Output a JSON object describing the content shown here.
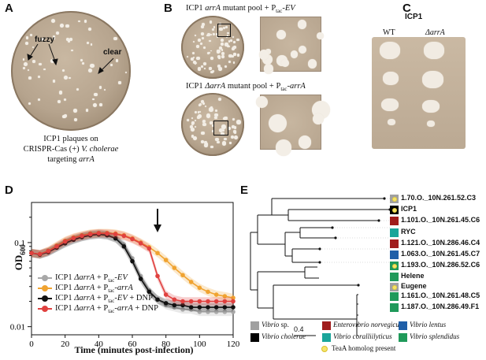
{
  "panels": {
    "A": {
      "letter": "A",
      "label_fuzzy": "fuzzy",
      "label_clear": "clear",
      "caption_line1": "ICP1 plaques on",
      "caption_line2_prefix": "CRISPR-Cas (+) ",
      "caption_line2_italic": "V. cholerae",
      "caption_line3_prefix": "targeting ",
      "caption_line3_italic": "arrA"
    },
    "B": {
      "letter": "B",
      "title1_prefix": "ICP1 ",
      "title1_italic": "arrA",
      "title1_mid": " mutant pool + P",
      "title1_sub": "tac",
      "title1_suffix": "-",
      "title1_suffix_italic": "EV",
      "title2_prefix": "ICP1 ",
      "title2_italic": "ΔarrA",
      "title2_mid": " mutant pool + P",
      "title2_sub": "tac",
      "title2_suffix": "-",
      "title2_suffix_italic": "arrA"
    },
    "C": {
      "letter": "C",
      "title": "ICP1",
      "col_wt": "WT",
      "col_delta": "ΔarrA"
    },
    "D": {
      "letter": "D",
      "ylabel": "OD",
      "ylabel_sub": "600",
      "xlabel": "Time (minutes post-infection)",
      "yticks": [
        "0.1",
        "0.01"
      ],
      "xticks": [
        "0",
        "20",
        "40",
        "60",
        "80",
        "100",
        "120"
      ],
      "legend": [
        {
          "prefix": "ICP1 ",
          "italic": "ΔarrA",
          "mid": " + P",
          "sub": "tac",
          "tail": "-",
          "tail_italic": "EV",
          "after": "",
          "color": "#a8a8a8"
        },
        {
          "prefix": "ICP1 ",
          "italic": "ΔarrA",
          "mid": " + P",
          "sub": "tac",
          "tail": "-",
          "tail_italic": "arrA",
          "after": "",
          "color": "#f0a330"
        },
        {
          "prefix": "ICP1 ",
          "italic": "ΔarrA",
          "mid": " + P",
          "sub": "tac",
          "tail": "-",
          "tail_italic": "EV",
          "after": " + DNP",
          "color": "#111111"
        },
        {
          "prefix": "ICP1 ",
          "italic": "ΔarrA",
          "mid": " + P",
          "sub": "tac",
          "tail": "-",
          "tail_italic": "arrA",
          "after": " + DNP",
          "color": "#e0413f"
        }
      ]
    },
    "E": {
      "letter": "E",
      "scale_label": "0.4",
      "leaves": [
        {
          "label": "1.70.O._10N.261.52.C3",
          "color": "#a0a0a0",
          "teaA": true
        },
        {
          "label": "ICP1",
          "color": "#000000",
          "teaA": true
        },
        {
          "label": "1.101.O._10N.261.45.C6",
          "color": "#a01c1c",
          "teaA": false
        },
        {
          "label": "RYC",
          "color": "#1aa59a",
          "teaA": false
        },
        {
          "label": "1.121.O._10N.286.46.C4",
          "color": "#a01c1c",
          "teaA": false
        },
        {
          "label": "1.063.O._10N.261.45.C7",
          "color": "#1f5fa8",
          "teaA": false
        },
        {
          "label": "1.193.O._10N.286.52.C6",
          "color": "#1f9a5a",
          "teaA": true
        },
        {
          "label": "Helene",
          "color": "#1f9a5a",
          "teaA": false
        },
        {
          "label": "Eugene",
          "color": "#a0a0a0",
          "teaA": true
        },
        {
          "label": "1.161.O._10N.261.48.C5",
          "color": "#1f9a5a",
          "teaA": false
        },
        {
          "label": "1.187.O._10N.286.49.F1",
          "color": "#1f9a5a",
          "teaA": false
        }
      ],
      "legend": [
        {
          "label": "Vibrio",
          "suffix": " sp.",
          "color": "#a0a0a0"
        },
        {
          "label": "Enterovibrio norvegicus",
          "suffix": "",
          "color": "#a01c1c"
        },
        {
          "label": "Vibrio lentus",
          "suffix": "",
          "color": "#1f5fa8"
        },
        {
          "label": "Vibrio cholerae",
          "suffix": "",
          "color": "#000000"
        },
        {
          "label": "Vibrio coralliilyticus",
          "suffix": "",
          "color": "#1aa59a"
        },
        {
          "label": "Vibrio splendidus",
          "suffix": "",
          "color": "#1f9a5a"
        }
      ],
      "teaA_legend": "TeaA homolog present"
    }
  },
  "chart_data": {
    "type": "line",
    "x": [
      0,
      5,
      10,
      15,
      20,
      25,
      30,
      35,
      40,
      45,
      50,
      55,
      60,
      65,
      70,
      75,
      80,
      85,
      90,
      95,
      100,
      105,
      110,
      115,
      120
    ],
    "ylim": [
      0.008,
      0.3
    ],
    "yscale": "log",
    "xlim": [
      0,
      120
    ],
    "xlabel": "Time (minutes post-infection)",
    "ylabel": "OD600",
    "annotation": "arrow at x≈75",
    "series": [
      {
        "name": "ICP1 ΔarrA + Ptac-EV",
        "color": "#a8a8a8",
        "values": [
          0.075,
          0.072,
          0.078,
          0.088,
          0.1,
          0.11,
          0.118,
          0.125,
          0.128,
          0.125,
          0.115,
          0.095,
          0.065,
          0.04,
          0.027,
          0.021,
          0.018,
          0.017,
          0.016,
          0.016,
          0.015,
          0.015,
          0.015,
          0.015,
          0.015
        ]
      },
      {
        "name": "ICP1 ΔarrA + Ptac-arrA",
        "color": "#f0a330",
        "values": [
          0.075,
          0.073,
          0.08,
          0.092,
          0.105,
          0.115,
          0.122,
          0.128,
          0.13,
          0.13,
          0.128,
          0.122,
          0.112,
          0.1,
          0.088,
          0.075,
          0.062,
          0.05,
          0.041,
          0.034,
          0.029,
          0.026,
          0.024,
          0.023,
          0.022
        ]
      },
      {
        "name": "ICP1 ΔarrA + Ptac-EV + DNP",
        "color": "#111111",
        "values": [
          0.075,
          0.072,
          0.077,
          0.087,
          0.098,
          0.108,
          0.116,
          0.122,
          0.125,
          0.122,
          0.112,
          0.09,
          0.06,
          0.037,
          0.026,
          0.021,
          0.019,
          0.018,
          0.018,
          0.017,
          0.017,
          0.017,
          0.017,
          0.017,
          0.017
        ]
      },
      {
        "name": "ICP1 ΔarrA + Ptac-arrA + DNP",
        "color": "#e0413f",
        "values": [
          0.075,
          0.073,
          0.079,
          0.09,
          0.103,
          0.113,
          0.12,
          0.126,
          0.129,
          0.128,
          0.126,
          0.12,
          0.11,
          0.098,
          0.085,
          0.04,
          0.024,
          0.021,
          0.02,
          0.02,
          0.02,
          0.02,
          0.02,
          0.02,
          0.02
        ]
      }
    ]
  }
}
